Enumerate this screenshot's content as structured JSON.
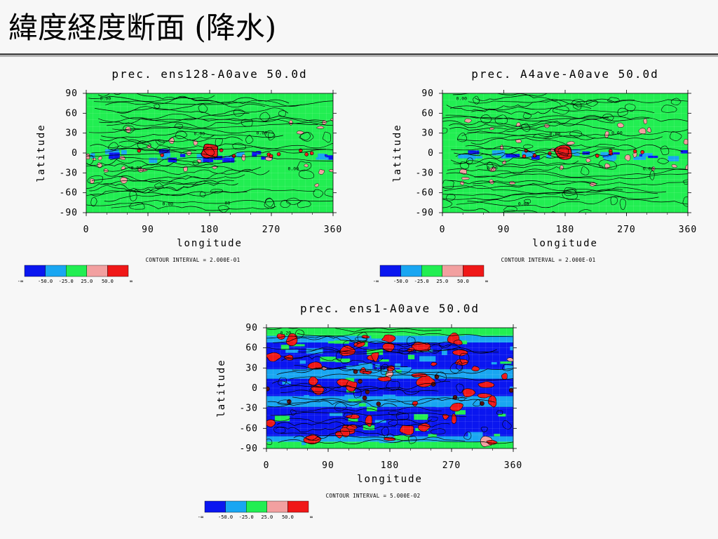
{
  "slide": {
    "title": "緯度経度断面 (降水)"
  },
  "colors": {
    "blue": "#0a16f0",
    "light_blue": "#19a6f2",
    "green": "#22ee52",
    "pink": "#f2a0a0",
    "red": "#f01818"
  },
  "chart_data": [
    {
      "type": "heatmap",
      "title": "prec.  ens128-A0ave 50.0d",
      "xlabel": "longitude",
      "ylabel": "latitude",
      "xlim": [
        0,
        360
      ],
      "ylim": [
        -90,
        90
      ],
      "xticks": [
        "0",
        "90",
        "180",
        "270",
        "360"
      ],
      "yticks": [
        "90",
        "60",
        "30",
        "0",
        "-30",
        "-60",
        "-90"
      ],
      "contour_interval": "CONTOUR INTERVAL = 2.000E-01",
      "contour_labels": [
        "0.00",
        "0.00",
        "0.00",
        "0.00",
        "0.00",
        "0.00",
        "00"
      ],
      "colorbar_levels": [
        "-∞",
        "-50.0",
        "-25.0",
        "25.0",
        "50.0",
        "∞"
      ],
      "features": {
        "background": "green",
        "blue_band_lat": [
          -8,
          6
        ],
        "red_blob": {
          "lon": 180,
          "lat": 2
        }
      }
    },
    {
      "type": "heatmap",
      "title": "prec.  A4ave-A0ave  50.0d",
      "xlabel": "longitude",
      "ylabel": "latitude",
      "xlim": [
        0,
        360
      ],
      "ylim": [
        -90,
        90
      ],
      "xticks": [
        "0",
        "90",
        "180",
        "270",
        "360"
      ],
      "yticks": [
        "90",
        "60",
        "30",
        "0",
        "-30",
        "-60",
        "-90"
      ],
      "contour_interval": "CONTOUR INTERVAL = 2.000E-01",
      "contour_labels": [
        "0.00",
        "0.00",
        "0.00",
        "0.00",
        "0.00",
        "0.00"
      ],
      "colorbar_levels": [
        "-∞",
        "-50.0",
        "-25.0",
        "25.0",
        "50.0",
        "∞"
      ],
      "features": {
        "background": "green",
        "blue_band_lat": [
          -6,
          6
        ],
        "red_blob": {
          "lon": 178,
          "lat": 2
        }
      }
    },
    {
      "type": "heatmap",
      "title": "prec.  ens1-A0ave 50.0d",
      "xlabel": "longitude",
      "ylabel": "latitude",
      "xlim": [
        0,
        360
      ],
      "ylim": [
        -90,
        90
      ],
      "xticks": [
        "0",
        "90",
        "180",
        "270",
        "360"
      ],
      "yticks": [
        "90",
        "60",
        "30",
        "0",
        "-30",
        "-60",
        "-90"
      ],
      "contour_interval": "CONTOUR INTERVAL = 5.000E-02",
      "contour_labels": [
        "0.20",
        "0.00"
      ],
      "colorbar_levels": [
        "-∞",
        "-50.0",
        "-25.0",
        "25.0",
        "50.0",
        "∞"
      ],
      "features": {
        "background": "banded",
        "blue_bands_lat": [
          [
            30,
            60
          ],
          [
            -10,
            12
          ],
          [
            -70,
            -35
          ]
        ],
        "red_blobs": "scattered"
      }
    }
  ]
}
